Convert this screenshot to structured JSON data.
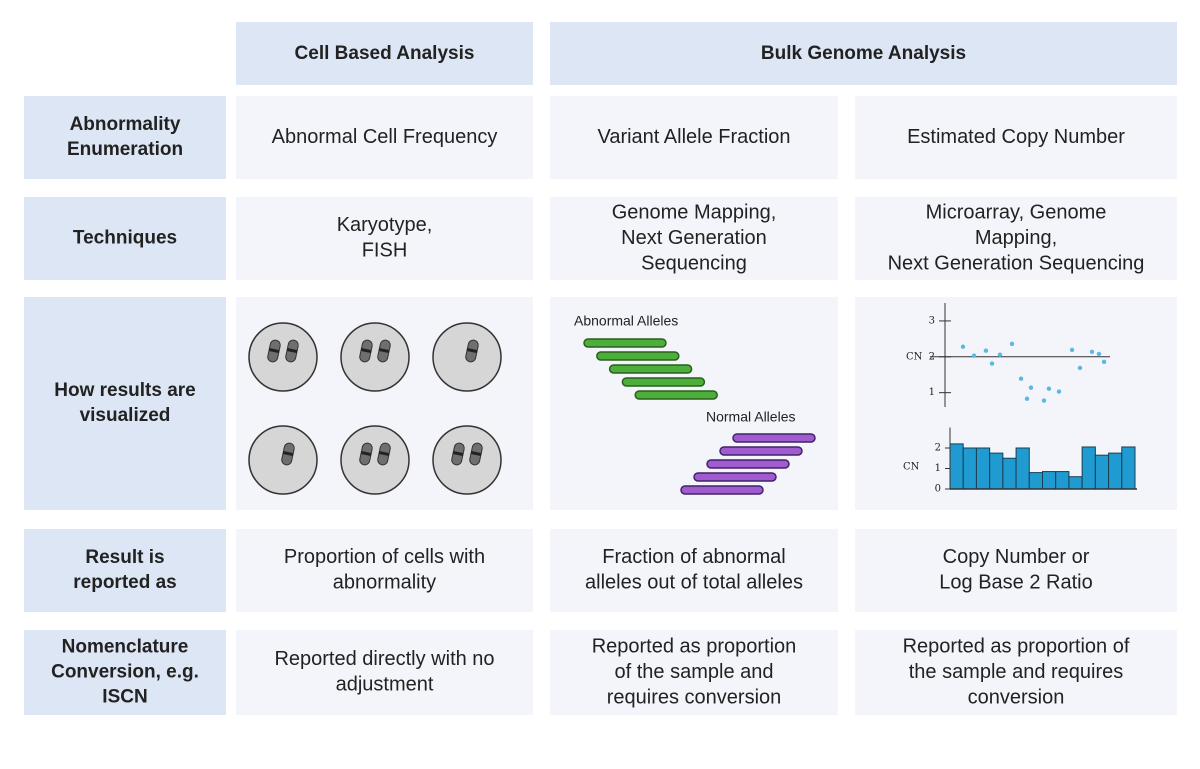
{
  "header": {
    "columns": [
      "Cell Based Analysis",
      "Bulk Genome Analysis"
    ]
  },
  "rows": [
    {
      "label": [
        "Abnormality",
        "Enumeration"
      ],
      "cells": [
        [
          "Abnormal Cell Frequency"
        ],
        [
          "Variant Allele Fraction"
        ],
        [
          "Estimated Copy Number"
        ]
      ]
    },
    {
      "label": [
        "Techniques"
      ],
      "cells": [
        [
          "Karyotype,",
          "FISH"
        ],
        [
          "Genome Mapping,",
          "Next Generation",
          "Sequencing"
        ],
        [
          "Microarray, Genome",
          "Mapping,",
          "Next Generation Sequencing"
        ]
      ]
    },
    {
      "label": [
        "How results are",
        "visualized"
      ]
    },
    {
      "label": [
        "Result is",
        "reported as"
      ],
      "cells": [
        [
          "Proportion of cells with",
          "abnormality"
        ],
        [
          "Fraction of abnormal",
          "alleles out of total alleles"
        ],
        [
          "Copy Number or",
          "Log Base 2 Ratio"
        ]
      ]
    },
    {
      "label": [
        "Nomenclature",
        "Conversion, e.g.",
        "ISCN"
      ],
      "cells": [
        [
          "Reported directly with no",
          "adjustment"
        ],
        [
          "Reported as proportion",
          "of the sample and",
          "requires conversion"
        ],
        [
          "Reported as proportion of",
          "the sample and requires",
          "conversion"
        ]
      ]
    }
  ],
  "visuals": {
    "alleles": {
      "abnormal_label": "Abnormal Alleles",
      "normal_label": "Normal Alleles"
    },
    "scatter": {
      "type": "scatter",
      "y_label": "CN",
      "color": "#5bb8e0",
      "xlim": [
        0,
        100
      ],
      "ylim": [
        0.6,
        3.5
      ],
      "yticks": [
        1,
        2,
        3
      ],
      "hline": 2,
      "x": [
        10.9,
        17.6,
        24.8,
        28.5,
        33.3,
        40.6,
        46.1,
        49.7,
        52.1,
        60,
        63,
        69.1,
        77,
        81.8,
        89.1,
        93.3,
        96.4
      ],
      "values": [
        2.28,
        2.03,
        2.17,
        1.81,
        2.06,
        2.36,
        1.39,
        0.83,
        1.14,
        0.78,
        1.11,
        1.03,
        2.19,
        1.69,
        2.14,
        2.08,
        1.86
      ]
    },
    "bars": {
      "type": "bar",
      "y_label": "CN",
      "color": "#1f9bd1",
      "ylim": [
        0,
        3
      ],
      "yticks": [
        0,
        1,
        2
      ],
      "values": [
        2.2,
        2.0,
        2.0,
        1.75,
        1.5,
        2.0,
        0.8,
        0.85,
        0.85,
        0.6,
        2.05,
        1.65,
        1.75,
        2.05
      ]
    }
  }
}
